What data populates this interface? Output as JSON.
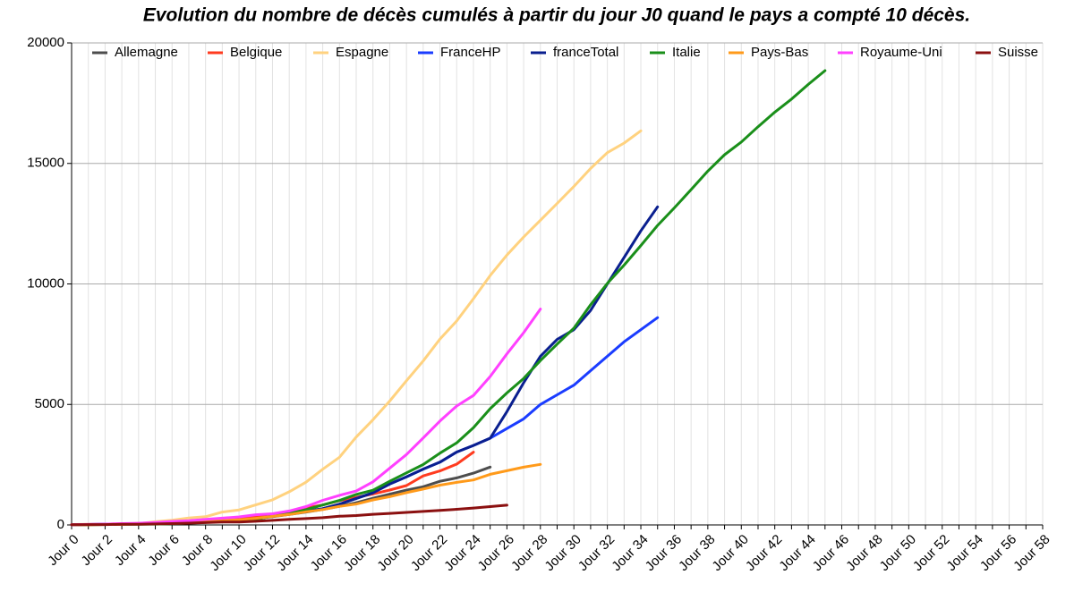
{
  "chart_data": {
    "type": "line",
    "title": "Evolution du nombre de décès cumulés à partir du jour J0 quand le pays a compté 10 décès.",
    "categories": [
      "Jour 0",
      null,
      "Jour 2",
      null,
      "Jour 4",
      null,
      "Jour 6",
      null,
      "Jour 8",
      null,
      "Jour 10",
      null,
      "Jour 12",
      null,
      "Jour 14",
      null,
      "Jour 16",
      null,
      "Jour 18",
      null,
      "Jour 20",
      null,
      "Jour 22",
      null,
      "Jour 24",
      null,
      "Jour 26",
      null,
      "Jour 28",
      null,
      "Jour 30",
      null,
      "Jour 32",
      null,
      "Jour 34",
      null,
      "Jour 36",
      null,
      "Jour 38",
      null,
      "Jour 40",
      null,
      "Jour 42",
      null,
      "Jour 44",
      null,
      "Jour 46",
      null,
      "Jour 48",
      null,
      "Jour 50",
      null,
      "Jour 52",
      null,
      "Jour 54",
      null,
      "Jour 56",
      null,
      "Jour 58"
    ],
    "series": [
      {
        "name": "Allemagne",
        "color": "#4d4d4d",
        "values": [
          12,
          13,
          20,
          28,
          44,
          67,
          84,
          94,
          123,
          157,
          206,
          267,
          342,
          433,
          533,
          645,
          775,
          920,
          1107,
          1275,
          1444,
          1584,
          1810,
          1950,
          2150,
          2400,
          null,
          null,
          null,
          null,
          null,
          null,
          null,
          null,
          null,
          null,
          null,
          null,
          null,
          null,
          null,
          null,
          null,
          null,
          null,
          null,
          null,
          null,
          null,
          null,
          null,
          null,
          null,
          null,
          null,
          null,
          null,
          null,
          null
        ]
      },
      {
        "name": "Belgique",
        "color": "#ff3b1f",
        "values": [
          10,
          14,
          21,
          37,
          67,
          75,
          88,
          122,
          178,
          220,
          289,
          353,
          431,
          513,
          705,
          828,
          1011,
          1143,
          1283,
          1447,
          1632,
          2035,
          2240,
          2523,
          3019,
          null,
          null,
          null,
          null,
          null,
          null,
          null,
          null,
          null,
          null,
          null,
          null,
          null,
          null,
          null,
          null,
          null,
          null,
          null,
          null,
          null,
          null,
          null,
          null,
          null,
          null,
          null,
          null,
          null,
          null,
          null,
          null,
          null,
          null
        ]
      },
      {
        "name": "Espagne",
        "color": "#ffd27f",
        "values": [
          17,
          28,
          35,
          54,
          55,
          133,
          195,
          289,
          342,
          533,
          623,
          830,
          1043,
          1375,
          1772,
          2311,
          2808,
          3647,
          4365,
          5138,
          5982,
          6803,
          7716,
          8464,
          9387,
          10348,
          11198,
          11947,
          12641,
          13341,
          14045,
          14792,
          15447,
          15843,
          16353,
          null,
          null,
          null,
          null,
          null,
          null,
          null,
          null,
          null,
          null,
          null,
          null,
          null,
          null,
          null,
          null,
          null,
          null,
          null,
          null,
          null,
          null,
          null,
          null
        ]
      },
      {
        "name": "FranceHP",
        "color": "#1a3cff",
        "values": [
          10,
          19,
          30,
          33,
          48,
          61,
          79,
          91,
          127,
          148,
          175,
          244,
          372,
          450,
          562,
          674,
          860,
          1100,
          1331,
          1696,
          1995,
          2314,
          2606,
          3024,
          3300,
          3600,
          4000,
          4400,
          5000,
          5400,
          5800,
          6400,
          7000,
          7600,
          8100,
          8600,
          null,
          null,
          null,
          null,
          null,
          null,
          null,
          null,
          null,
          null,
          null,
          null,
          null,
          null,
          null,
          null,
          null,
          null,
          null,
          null,
          null,
          null,
          null
        ]
      },
      {
        "name": "franceTotal",
        "color": "#0a1f8f",
        "values": [
          10,
          19,
          30,
          33,
          48,
          61,
          79,
          91,
          127,
          148,
          175,
          244,
          372,
          450,
          562,
          674,
          860,
          1100,
          1331,
          1696,
          1995,
          2314,
          2606,
          3024,
          3300,
          3600,
          4700,
          5900,
          7000,
          7700,
          8100,
          8900,
          10000,
          11100,
          12200,
          13200,
          null,
          null,
          null,
          null,
          null,
          null,
          null,
          null,
          null,
          null,
          null,
          null,
          null,
          null,
          null,
          null,
          null,
          null,
          null,
          null,
          null,
          null,
          null
        ]
      },
      {
        "name": "Italie",
        "color": "#1a8f1a",
        "values": [
          10,
          12,
          17,
          21,
          29,
          34,
          52,
          79,
          107,
          148,
          197,
          233,
          366,
          463,
          631,
          827,
          1016,
          1266,
          1441,
          1809,
          2158,
          2503,
          2978,
          3405,
          4032,
          4825,
          5476,
          6077,
          6820,
          7503,
          8165,
          9134,
          10023,
          10779,
          11591,
          12428,
          13155,
          13915,
          14681,
          15362,
          15887,
          16523,
          17127,
          17669,
          18279,
          18849,
          null,
          null,
          null,
          null,
          null,
          null,
          null,
          null,
          null,
          null,
          null,
          null,
          null
        ]
      },
      {
        "name": "Pays-Bas",
        "color": "#ff9a1a",
        "values": [
          10,
          12,
          20,
          24,
          43,
          58,
          76,
          106,
          136,
          179,
          213,
          276,
          356,
          434,
          546,
          639,
          771,
          864,
          1039,
          1173,
          1339,
          1487,
          1651,
          1766,
          1867,
          2101,
          2248,
          2396,
          2511,
          null,
          null,
          null,
          null,
          null,
          null,
          null,
          null,
          null,
          null,
          null,
          null,
          null,
          null,
          null,
          null,
          null,
          null,
          null,
          null,
          null,
          null,
          null,
          null,
          null,
          null,
          null,
          null,
          null,
          null
        ]
      },
      {
        "name": "Royaume-Uni",
        "color": "#ff40ff",
        "values": [
          10,
          21,
          35,
          55,
          71,
          104,
          144,
          177,
          233,
          281,
          335,
          422,
          463,
          578,
          759,
          1019,
          1228,
          1408,
          1789,
          2352,
          2921,
          3605,
          4313,
          4934,
          5373,
          6159,
          7097,
          7978,
          8958,
          null,
          null,
          null,
          null,
          null,
          null,
          null,
          null,
          null,
          null,
          null,
          null,
          null,
          null,
          null,
          null,
          null,
          null,
          null,
          null,
          null,
          null,
          null,
          null,
          null,
          null,
          null,
          null,
          null,
          null
        ]
      },
      {
        "name": "Suisse",
        "color": "#8b1010",
        "values": [
          11,
          13,
          14,
          27,
          28,
          41,
          54,
          75,
          98,
          120,
          122,
          153,
          191,
          231,
          264,
          300,
          360,
          390,
          440,
          480,
          520,
          560,
          600,
          650,
          700,
          760,
          820,
          null,
          null,
          null,
          null,
          null,
          null,
          null,
          null,
          null,
          null,
          null,
          null,
          null,
          null,
          null,
          null,
          null,
          null,
          null,
          null,
          null,
          null,
          null,
          null,
          null,
          null,
          null,
          null,
          null,
          null,
          null,
          null
        ]
      }
    ],
    "ylim": [
      0,
      20000
    ],
    "yticks": [
      0,
      5000,
      10000,
      15000,
      20000
    ],
    "grid": true,
    "legend": "top"
  }
}
